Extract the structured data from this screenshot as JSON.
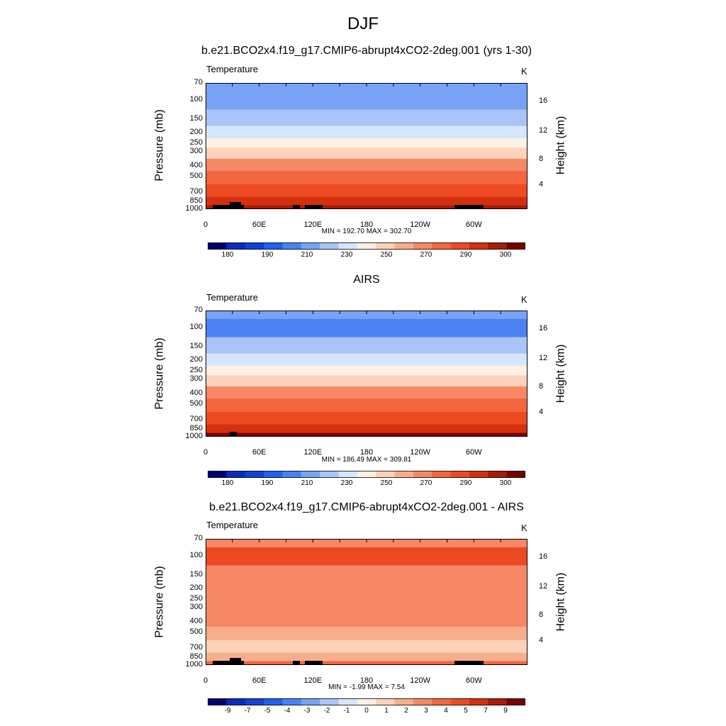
{
  "main_title": "DJF",
  "chart_data": [
    {
      "type": "heatmap",
      "title": "b.e21.BCO2x4.f19_g17.CMIP6-abrupt4xCO2-2deg.001 (yrs 1-30)",
      "left_label": "Temperature",
      "right_label": "K",
      "ylabel": "Pressure (mb)",
      "ylabel_right": "Height (km)",
      "yticks": [
        "70",
        "100",
        "150",
        "200",
        "250",
        "300",
        "400",
        "500",
        "700",
        "850",
        "1000"
      ],
      "yticks_right": [
        "16",
        "12",
        "8",
        "4"
      ],
      "xticks": [
        "0",
        "60E",
        "120E",
        "180",
        "120W",
        "60W"
      ],
      "stats": "MIN = 192.70  MAX = 302.70",
      "colorbar_labels": [
        "180",
        "190",
        "210",
        "230",
        "250",
        "270",
        "290",
        "300"
      ],
      "levels": [
        {
          "p": "70",
          "value": 205
        },
        {
          "p": "100",
          "value": 205
        },
        {
          "p": "150",
          "value": 215
        },
        {
          "p": "200",
          "value": 225
        },
        {
          "p": "250",
          "value": 235
        },
        {
          "p": "300",
          "value": 250
        },
        {
          "p": "400",
          "value": 262
        },
        {
          "p": "500",
          "value": 272
        },
        {
          "p": "700",
          "value": 285
        },
        {
          "p": "850",
          "value": 295
        },
        {
          "p": "1000",
          "value": 300
        }
      ]
    },
    {
      "type": "heatmap",
      "title": "AIRS",
      "left_label": "Temperature",
      "right_label": "K",
      "ylabel": "Pressure (mb)",
      "ylabel_right": "Height (km)",
      "yticks": [
        "70",
        "100",
        "150",
        "200",
        "250",
        "300",
        "400",
        "500",
        "700",
        "850",
        "1000"
      ],
      "yticks_right": [
        "16",
        "12",
        "8",
        "4"
      ],
      "xticks": [
        "0",
        "60E",
        "120E",
        "180",
        "120W",
        "60W"
      ],
      "stats": "MIN = 186.49  MAX = 309.81",
      "colorbar_labels": [
        "180",
        "190",
        "210",
        "230",
        "250",
        "270",
        "290",
        "300"
      ],
      "levels": [
        {
          "p": "70",
          "value": 205
        },
        {
          "p": "100",
          "value": 195
        },
        {
          "p": "150",
          "value": 212
        },
        {
          "p": "200",
          "value": 222
        },
        {
          "p": "250",
          "value": 232
        },
        {
          "p": "300",
          "value": 250
        },
        {
          "p": "400",
          "value": 262
        },
        {
          "p": "500",
          "value": 272
        },
        {
          "p": "700",
          "value": 285
        },
        {
          "p": "850",
          "value": 295
        },
        {
          "p": "1000",
          "value": 302
        }
      ]
    },
    {
      "type": "heatmap",
      "title": "b.e21.BCO2x4.f19_g17.CMIP6-abrupt4xCO2-2deg.001 - AIRS",
      "left_label": "Temperature",
      "right_label": "K",
      "ylabel": "Pressure (mb)",
      "ylabel_right": "Height (km)",
      "yticks": [
        "70",
        "100",
        "150",
        "200",
        "250",
        "300",
        "400",
        "500",
        "700",
        "850",
        "1000"
      ],
      "yticks_right": [
        "16",
        "12",
        "8",
        "4"
      ],
      "xticks": [
        "0",
        "60E",
        "120E",
        "180",
        "120W",
        "60W"
      ],
      "stats": "MIN =  -1.99  MAX =   7.54",
      "colorbar_labels": [
        "-9",
        "-7",
        "-5",
        "-4",
        "-3",
        "-2",
        "-1",
        "0",
        "1",
        "2",
        "3",
        "4",
        "5",
        "7",
        "9"
      ],
      "levels": [
        {
          "p": "70",
          "value": 4
        },
        {
          "p": "100",
          "value": 6
        },
        {
          "p": "150",
          "value": 3.5
        },
        {
          "p": "200",
          "value": 3.5
        },
        {
          "p": "250",
          "value": 4
        },
        {
          "p": "300",
          "value": 3.5
        },
        {
          "p": "400",
          "value": 3.5
        },
        {
          "p": "500",
          "value": 2.5
        },
        {
          "p": "700",
          "value": 2
        },
        {
          "p": "850",
          "value": 3
        },
        {
          "p": "1000",
          "value": 4.5
        }
      ]
    }
  ],
  "colors": {
    "temp_scale": [
      "#000070",
      "#0a2bc0",
      "#1240d8",
      "#2060f0",
      "#4a82f4",
      "#78a2f6",
      "#a8c4f8",
      "#d6e6fc",
      "#fff0e4",
      "#fcd2b8",
      "#f8ae8c",
      "#f68866",
      "#f26640",
      "#ee4a22",
      "#d43010",
      "#a81c08",
      "#7a0000"
    ],
    "diff_scale": [
      "#000070",
      "#0a2bc0",
      "#1240d8",
      "#2060f0",
      "#4a82f4",
      "#78a2f6",
      "#a8c4f8",
      "#d6e6fc",
      "#fff0e4",
      "#fcd2b8",
      "#f8ae8c",
      "#f68866",
      "#f26640",
      "#ee4a22",
      "#d43010",
      "#a81c08",
      "#7a0000"
    ],
    "terrain": "#000000"
  }
}
